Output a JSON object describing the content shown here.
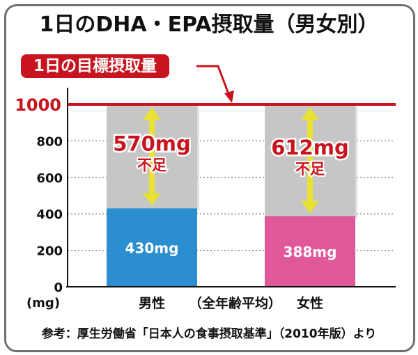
{
  "title": "1日のDHA・EPA摂取量（男女別）",
  "target_label": "1日の目標摂取量",
  "footer": "参考：厚生労働省「日本人の食事摂取基準」（2010年版）より",
  "colors": {
    "accent_red": "#c8141e",
    "male": "#2a8ed1",
    "female": "#e0579a",
    "shortfall": "#c6c6c6",
    "arrow": "#e8e234"
  },
  "chart_data": {
    "type": "bar",
    "stacked": true,
    "categories": [
      "男性",
      "女性"
    ],
    "center_note": "（全年齢平均）",
    "unit_label": "(mg)",
    "y_ticks": [
      "0",
      "200",
      "400",
      "600",
      "800",
      "1000"
    ],
    "ylim": [
      0,
      1000
    ],
    "target": 1000,
    "grid": true,
    "series": [
      {
        "values": [
          430,
          388
        ],
        "labels": [
          "430mg",
          "388mg"
        ]
      },
      {
        "values": [
          570,
          612
        ],
        "labels": [
          "570mg",
          "612mg"
        ],
        "note": "不足"
      }
    ]
  }
}
